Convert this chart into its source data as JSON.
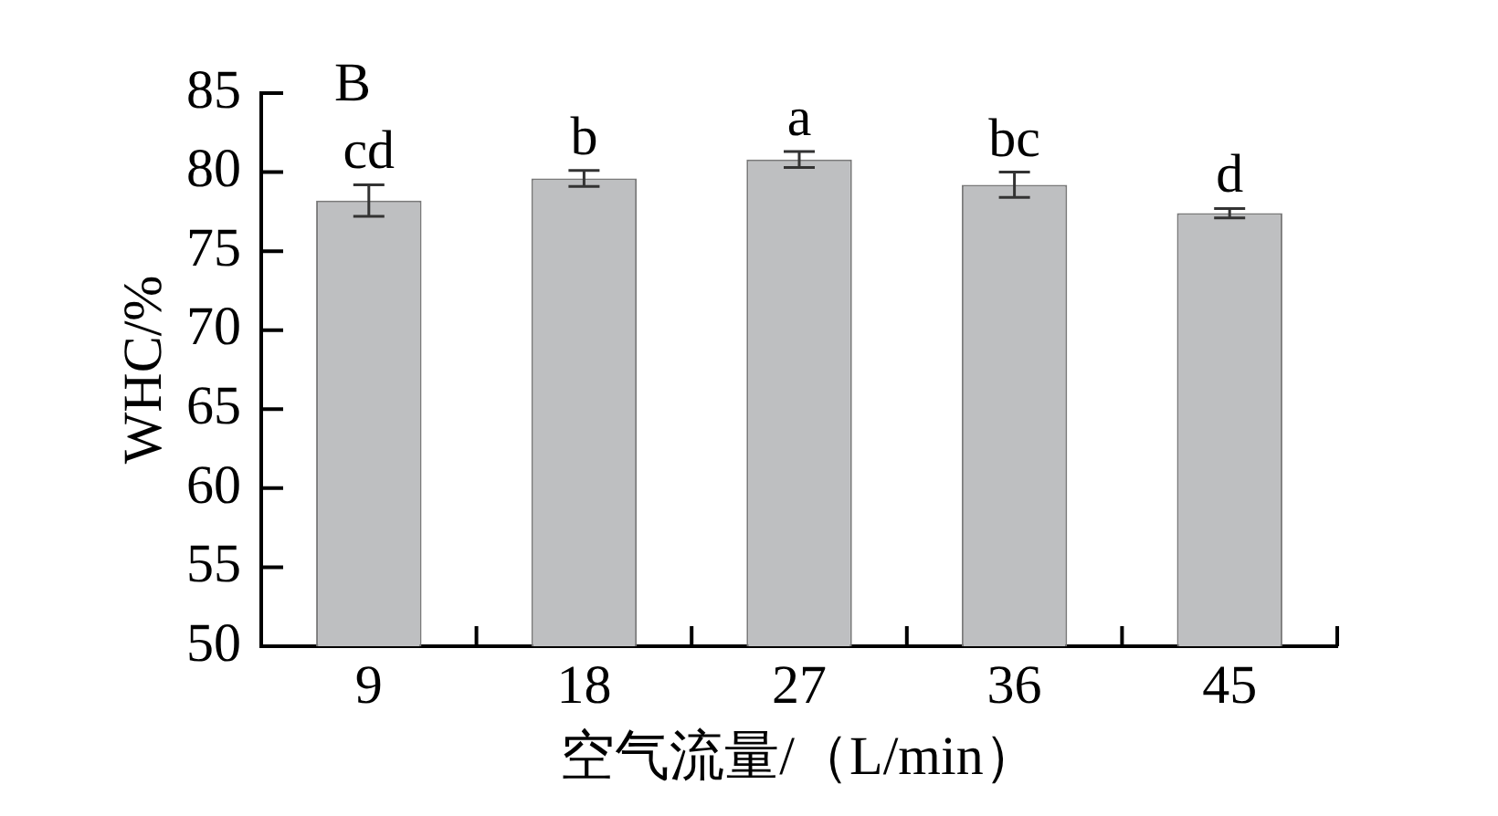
{
  "chart_data": {
    "type": "bar",
    "xlabel": "空气流量/（L/min）",
    "ylabel": "WHC/%",
    "categories": [
      "9",
      "18",
      "27",
      "36",
      "45"
    ],
    "values": [
      78.2,
      79.6,
      80.8,
      79.2,
      77.4
    ],
    "errors": [
      1.0,
      0.5,
      0.5,
      0.8,
      0.3
    ],
    "color": "#bebfc1",
    "ylim": [
      50,
      85
    ],
    "yticks": [
      50,
      55,
      60,
      65,
      70,
      75,
      80,
      85
    ],
    "annotations": [
      "B",
      {
        "text": "cd",
        "x": "9",
        "y": 79.2
      },
      {
        "text": "b",
        "x": "18",
        "y": 80.1
      },
      {
        "text": "a",
        "x": "27",
        "y": 81.3
      },
      {
        "text": "bc",
        "x": "36",
        "y": 80.0
      },
      {
        "text": "d",
        "x": "45",
        "y": 77.7
      }
    ]
  }
}
